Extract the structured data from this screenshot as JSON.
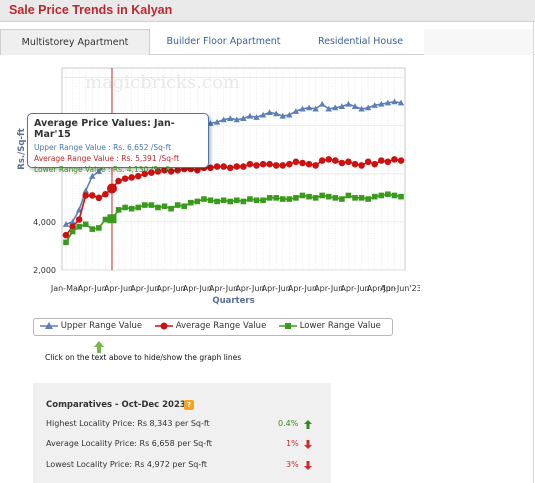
{
  "header": {
    "title": "Sale Price Trends in Kalyan"
  },
  "tabs": [
    {
      "label": "Multistorey Apartment",
      "active": true
    },
    {
      "label": "Builder Floor Apartment",
      "active": false
    },
    {
      "label": "Residential House",
      "active": false
    }
  ],
  "chart_data": {
    "type": "line",
    "watermark": "magicbricks.com",
    "xlabel": "Quarters",
    "ylabel": "Rs./Sq-ft",
    "ylim": [
      2000,
      10400
    ],
    "yticks": [
      "2,000",
      "4,000"
    ],
    "xtick_labels": [
      "Jan-Mar",
      "Apr-Jun",
      "Apr-Jun",
      "Apr-Jun",
      "Apr-Jun",
      "Apr-Jun",
      "Apr-Jun",
      "Apr-Jun",
      "Apr-Jun",
      "Apr-Jun",
      "Apr-Jun",
      "Apr-Jun",
      "Apr-Jun",
      "Apr-Jun",
      "Apr-Jun",
      "Apr-Jun",
      "Apr-Jun",
      "Apr-Jun",
      "Apr-Jun",
      "Apr-Jun",
      "Apr-Jun",
      "Apr-Jun",
      "Apr-Jun",
      "Apr-Jun",
      "Apr-Jun",
      "Apr-Jun",
      "Apr-Jun",
      "Apr-Jun",
      "Apr-Jun",
      "Apr-Jun",
      "Apr-Jun",
      "Apr-Jun",
      "Apr-Jun",
      "Apr-Jun",
      "Apr-Jun",
      "Apr-Jun",
      "Apr-Jun",
      "Apr-Jun",
      "Apr-Jun",
      "Apr-Jun",
      "Apr-Jun",
      "Apr-Jun",
      "Apr-Jun",
      "Apr-Jun",
      "Apr-Jun",
      "Apr-Jun",
      "Apr-Jun",
      "Apr-Jun",
      "Apr-Jun",
      "Apr-Jun",
      "Apr-Jun",
      "Apr-Jun'23"
    ],
    "grid": true,
    "highlight_index": 7,
    "series": [
      {
        "name": "Upper Range Value",
        "color": "#5b7fb6",
        "marker": "triangle",
        "values": [
          3900,
          4000,
          4500,
          5300,
          5900,
          6100,
          6400,
          6652,
          6850,
          7150,
          7300,
          7450,
          7600,
          7700,
          7850,
          7950,
          8000,
          8050,
          7950,
          8000,
          8100,
          8050,
          8100,
          8150,
          8250,
          8300,
          8250,
          8300,
          8400,
          8350,
          8450,
          8550,
          8500,
          8400,
          8450,
          8600,
          8700,
          8750,
          8700,
          8900,
          8700,
          8750,
          8800,
          8900,
          8800,
          8700,
          8750,
          8850,
          8900,
          8950,
          9000,
          8950
        ]
      },
      {
        "name": "Average Range Value",
        "color": "#cc1111",
        "marker": "circle",
        "values": [
          3450,
          3800,
          4100,
          5100,
          5100,
          5000,
          5150,
          5391,
          5700,
          5800,
          5850,
          5900,
          6000,
          6050,
          6100,
          6150,
          6100,
          6150,
          6200,
          6200,
          6150,
          6250,
          6250,
          6300,
          6300,
          6250,
          6300,
          6300,
          6400,
          6350,
          6400,
          6400,
          6350,
          6350,
          6400,
          6500,
          6450,
          6400,
          6350,
          6550,
          6600,
          6550,
          6450,
          6500,
          6400,
          6350,
          6500,
          6400,
          6550,
          6500,
          6600,
          6550
        ]
      },
      {
        "name": "Lower Range Value",
        "color": "#3a9a1e",
        "marker": "square",
        "values": [
          3150,
          3600,
          3800,
          3900,
          3700,
          3750,
          4100,
          4130,
          4500,
          4600,
          4550,
          4600,
          4700,
          4700,
          4600,
          4650,
          4550,
          4700,
          4650,
          4800,
          4850,
          4950,
          4900,
          4850,
          4900,
          4850,
          4900,
          4850,
          4950,
          4900,
          4900,
          5000,
          5000,
          4950,
          4950,
          5000,
          5100,
          5050,
          5000,
          5100,
          5050,
          5000,
          4950,
          5100,
          5000,
          5000,
          4950,
          5050,
          5100,
          5150,
          5100,
          5050
        ]
      }
    ]
  },
  "tooltip": {
    "title": "Average Price Values: Jan-Mar'15",
    "upper": "Upper Range Value : Rs. 6,652 /Sq-ft",
    "average": "Average Range Value : Rs. 5,391 /Sq-ft",
    "lower": "Lower Range Value : Rs. 4,130 /Sq-ft"
  },
  "legend": {
    "upper": "Upper Range Value",
    "average": "Average Range Value",
    "lower": "Lower Range Value"
  },
  "hint": "Click on the text above to hide/show the graph lines",
  "comparatives": {
    "title": "Comparatives - Oct-Dec 2023",
    "rows": [
      {
        "label": "Highest Locality Price: Rs 8,343 per Sq-ft",
        "pct": "0.4%",
        "direction": "up",
        "color": "#2e8b1e"
      },
      {
        "label": "Average Locality Price: Rs 6,658 per Sq-ft",
        "pct": "1%",
        "direction": "down",
        "color": "#d12b2b"
      },
      {
        "label": "Lowest Locality Price: Rs 4,972 per Sq-ft",
        "pct": "3%",
        "direction": "down",
        "color": "#d12b2b"
      }
    ]
  }
}
